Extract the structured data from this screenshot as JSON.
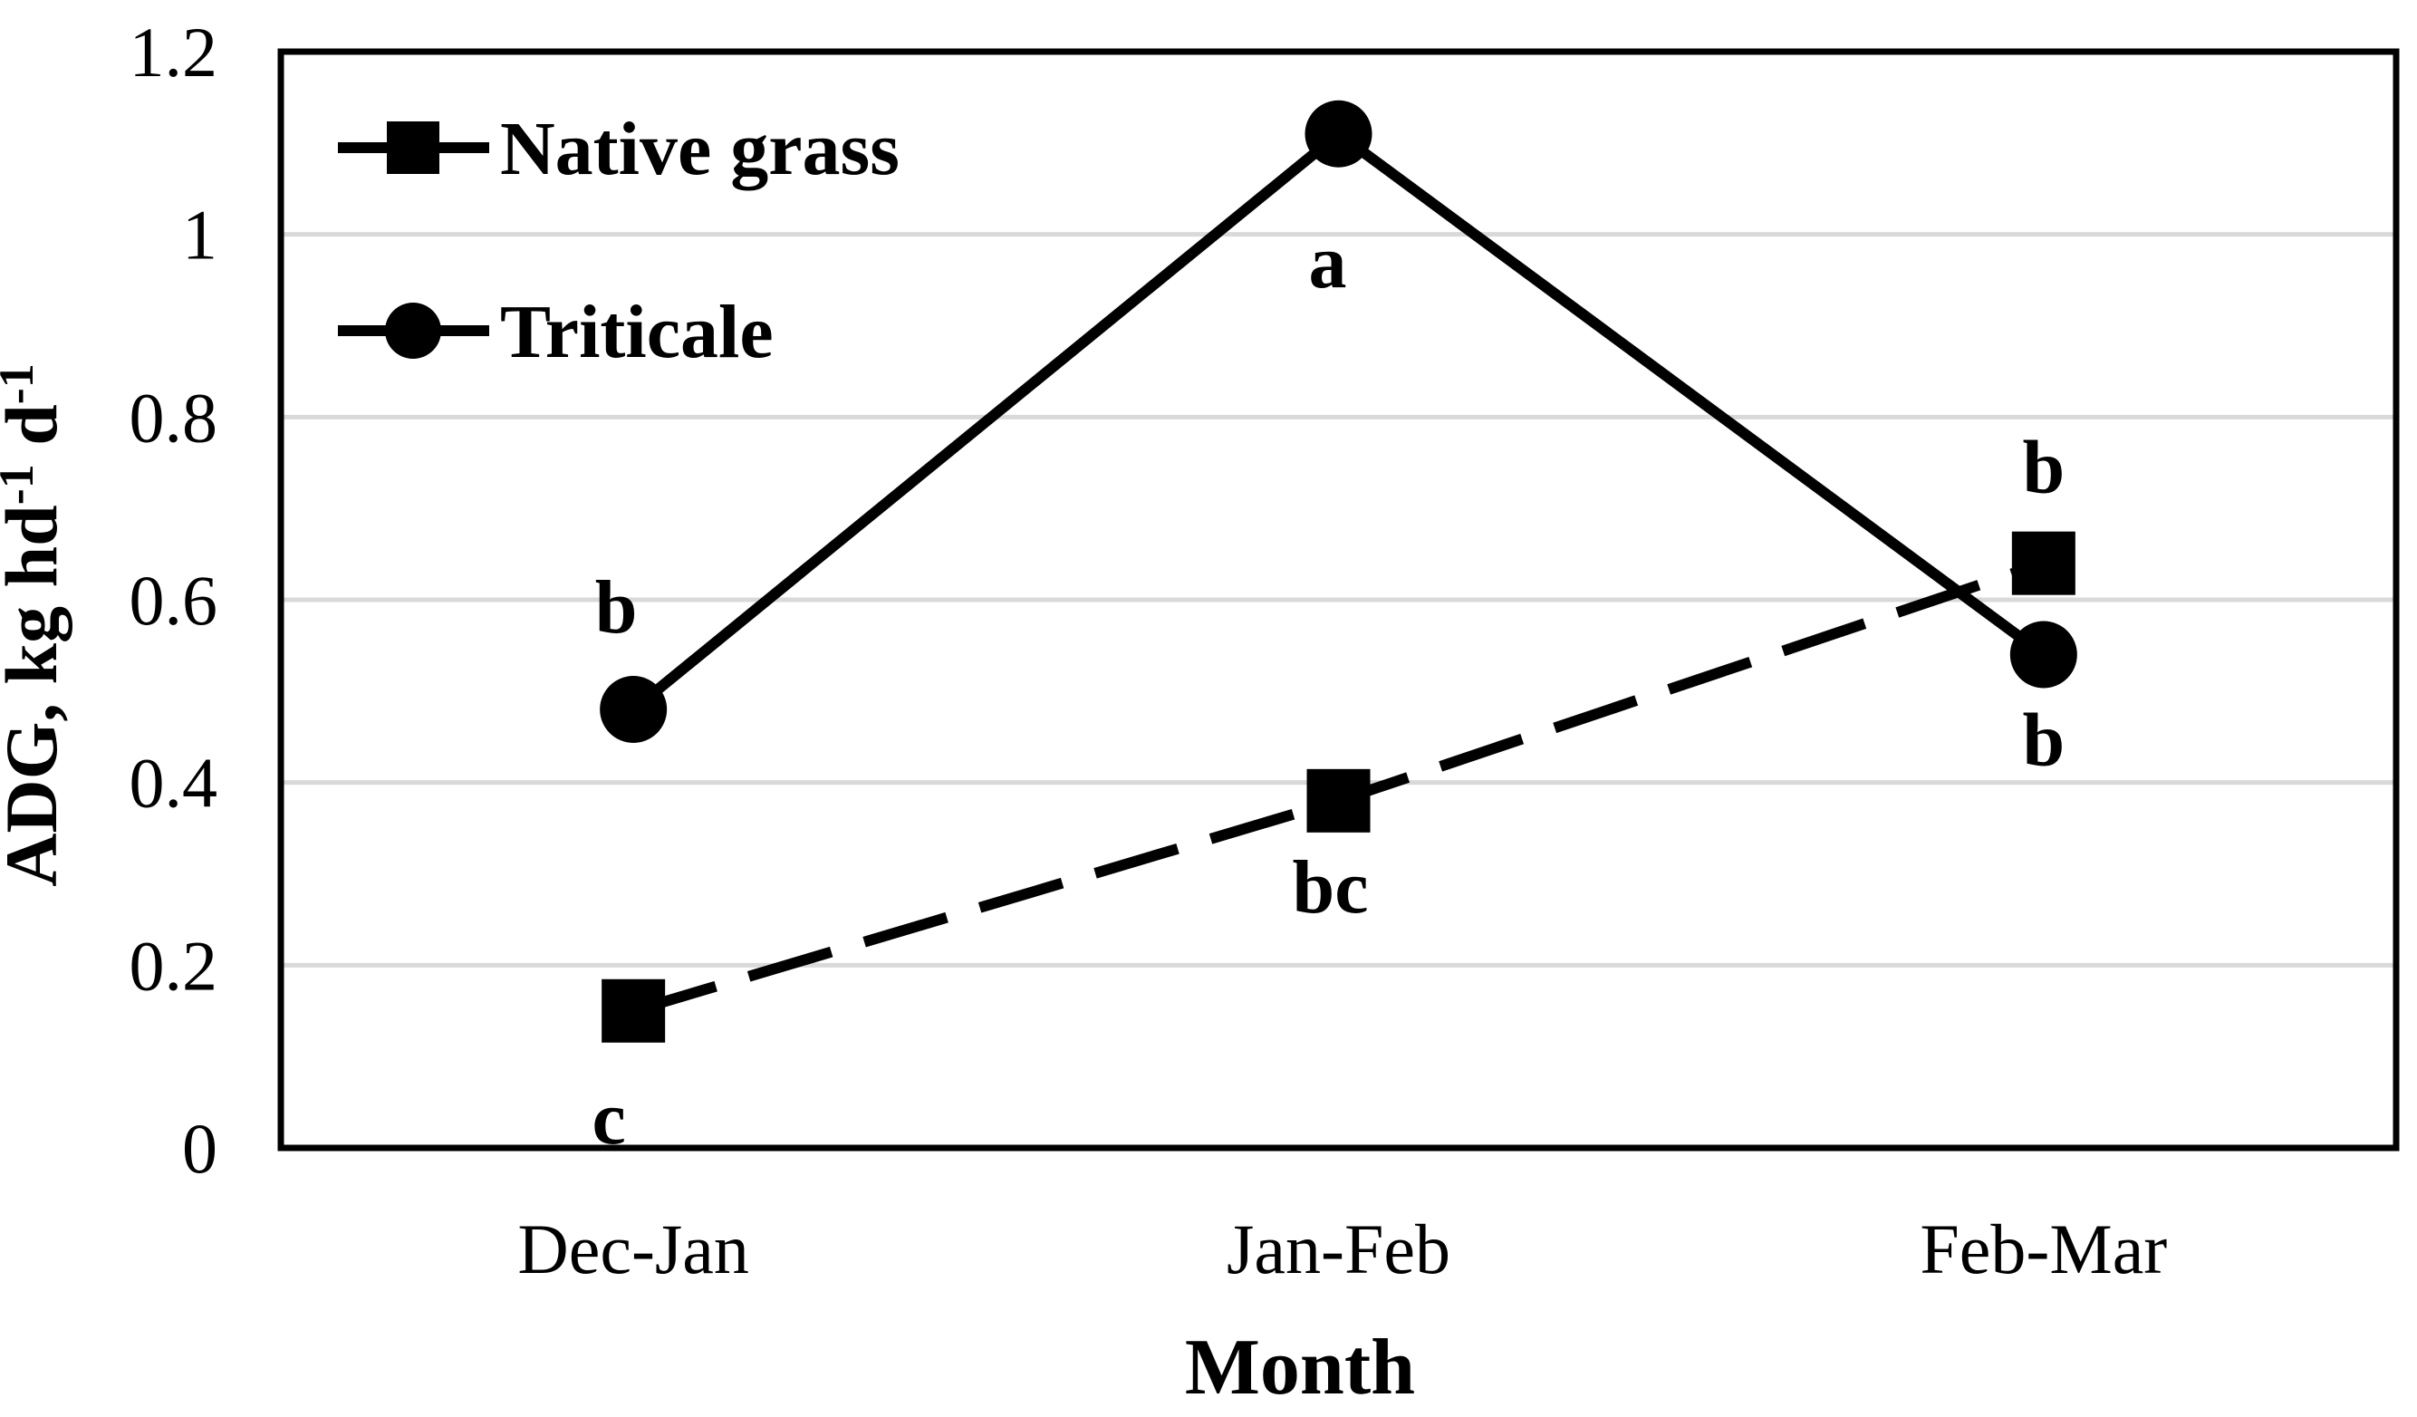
{
  "chart_data": {
    "type": "line",
    "title": "",
    "categories": [
      "Dec-Jan",
      "Jan-Feb",
      "Feb-Mar"
    ],
    "xlabel": "Month",
    "ylabel_text": "ADG, kg hd-1 d-1",
    "ylabel_parts": [
      {
        "text": "ADG, kg hd"
      },
      {
        "text": "-1",
        "sup": true
      },
      {
        "text": " d"
      },
      {
        "text": "-1",
        "sup": true
      }
    ],
    "ylim": [
      0,
      1.2
    ],
    "yticks": [
      0,
      0.2,
      0.4,
      0.6,
      0.8,
      1,
      1.2
    ],
    "ytick_labels": [
      "0",
      "0.2",
      "0.4",
      "0.6",
      "0.8",
      "1",
      "1.2"
    ],
    "grid": "horizontal",
    "legend_position": "top-left-inside",
    "series": [
      {
        "name": "Native grass",
        "marker": "square",
        "line_style": "dashed",
        "values": [
          0.15,
          0.38,
          0.64
        ],
        "point_labels": [
          {
            "text": "c",
            "dx": -27,
            "dy": 117
          },
          {
            "text": "bc",
            "dx": -9,
            "dy": 94
          },
          {
            "text": "b",
            "dx": 0,
            "dy": -107
          }
        ]
      },
      {
        "name": "Triticale",
        "marker": "circle",
        "line_style": "solid",
        "values": [
          0.48,
          1.11,
          0.54
        ],
        "point_labels": [
          {
            "text": "b",
            "dx": -19,
            "dy": -114
          },
          {
            "text": "a",
            "dx": -12,
            "dy": 140
          },
          {
            "text": "b",
            "dx": 0,
            "dy": 93
          }
        ]
      }
    ],
    "colors": {
      "series": "#000000",
      "gridline": "#d9d9d9",
      "background": "#ffffff",
      "plot_border": "#000000"
    }
  }
}
